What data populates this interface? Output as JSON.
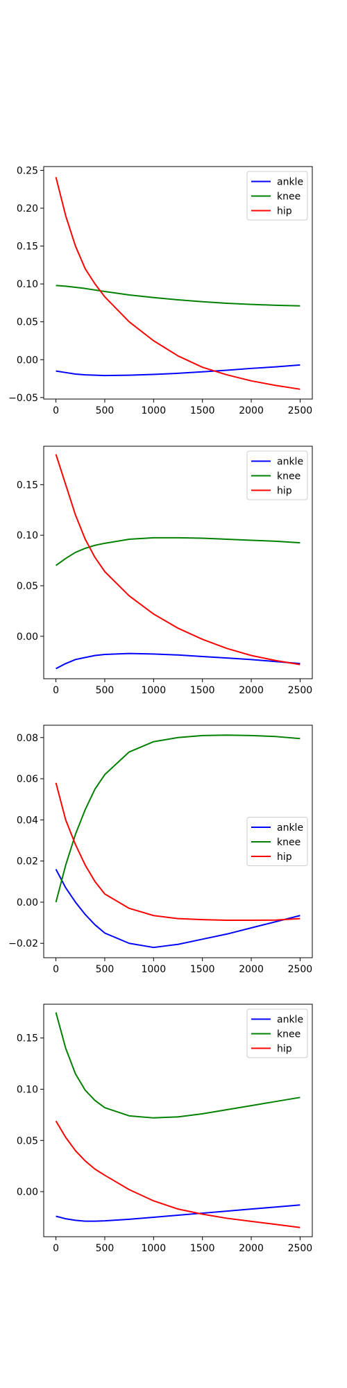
{
  "chart_data": [
    {
      "type": "line",
      "xlim": [
        -125,
        2625
      ],
      "ylim": [
        -0.052,
        0.255
      ],
      "xticks": [
        0,
        500,
        1000,
        1500,
        2000,
        2500
      ],
      "xtick_labels": [
        "0",
        "500",
        "1000",
        "1500",
        "2000",
        "2500"
      ],
      "yticks": [
        -0.05,
        0.0,
        0.05,
        0.1,
        0.15,
        0.2,
        0.25
      ],
      "ytick_labels": [
        "−0.05",
        "0.00",
        "0.05",
        "0.10",
        "0.15",
        "0.20",
        "0.25"
      ],
      "grid": false,
      "legend_position": "upper right",
      "series": [
        {
          "name": "ankle",
          "color": "#0000ff",
          "x": [
            0,
            100,
            200,
            300,
            400,
            500,
            750,
            1000,
            1250,
            1500,
            1750,
            2000,
            2250,
            2500
          ],
          "y": [
            -0.015,
            -0.017,
            -0.019,
            -0.02,
            -0.0205,
            -0.021,
            -0.0205,
            -0.0195,
            -0.018,
            -0.016,
            -0.014,
            -0.0115,
            -0.0095,
            -0.007
          ]
        },
        {
          "name": "knee",
          "color": "#008000",
          "x": [
            0,
            100,
            200,
            300,
            400,
            500,
            750,
            1000,
            1250,
            1500,
            1750,
            2000,
            2250,
            2500
          ],
          "y": [
            0.098,
            0.097,
            0.0955,
            0.094,
            0.092,
            0.09,
            0.0855,
            0.082,
            0.079,
            0.0765,
            0.0745,
            0.073,
            0.0718,
            0.071
          ]
        },
        {
          "name": "hip",
          "color": "#ff0000",
          "x": [
            0,
            100,
            200,
            300,
            400,
            500,
            750,
            1000,
            1250,
            1500,
            1750,
            2000,
            2250,
            2500
          ],
          "y": [
            0.241,
            0.19,
            0.15,
            0.12,
            0.1,
            0.083,
            0.05,
            0.025,
            0.005,
            -0.01,
            -0.02,
            -0.028,
            -0.034,
            -0.039
          ]
        }
      ]
    },
    {
      "type": "line",
      "xlim": [
        -125,
        2625
      ],
      "ylim": [
        -0.042,
        0.188
      ],
      "xticks": [
        0,
        500,
        1000,
        1500,
        2000,
        2500
      ],
      "xtick_labels": [
        "0",
        "500",
        "1000",
        "1500",
        "2000",
        "2500"
      ],
      "yticks": [
        0.0,
        0.05,
        0.1,
        0.15
      ],
      "ytick_labels": [
        "0.00",
        "0.05",
        "0.10",
        "0.15"
      ],
      "grid": false,
      "legend_position": "upper right",
      "series": [
        {
          "name": "ankle",
          "color": "#0000ff",
          "x": [
            0,
            100,
            200,
            300,
            400,
            500,
            750,
            1000,
            1250,
            1500,
            1750,
            2000,
            2250,
            2500
          ],
          "y": [
            -0.032,
            -0.027,
            -0.023,
            -0.021,
            -0.019,
            -0.018,
            -0.017,
            -0.0175,
            -0.0185,
            -0.02,
            -0.0215,
            -0.023,
            -0.025,
            -0.027
          ]
        },
        {
          "name": "knee",
          "color": "#008000",
          "x": [
            0,
            100,
            200,
            300,
            400,
            500,
            750,
            1000,
            1250,
            1500,
            1750,
            2000,
            2250,
            2500
          ],
          "y": [
            0.07,
            0.077,
            0.083,
            0.087,
            0.09,
            0.092,
            0.096,
            0.0975,
            0.0975,
            0.097,
            0.096,
            0.095,
            0.094,
            0.0925
          ]
        },
        {
          "name": "hip",
          "color": "#ff0000",
          "x": [
            0,
            100,
            200,
            300,
            400,
            500,
            750,
            1000,
            1250,
            1500,
            1750,
            2000,
            2250,
            2500
          ],
          "y": [
            0.18,
            0.15,
            0.12,
            0.096,
            0.078,
            0.064,
            0.04,
            0.022,
            0.008,
            -0.003,
            -0.012,
            -0.019,
            -0.024,
            -0.028
          ]
        }
      ]
    },
    {
      "type": "line",
      "xlim": [
        -125,
        2625
      ],
      "ylim": [
        -0.027,
        0.086
      ],
      "xticks": [
        0,
        500,
        1000,
        1500,
        2000,
        2500
      ],
      "xtick_labels": [
        "0",
        "500",
        "1000",
        "1500",
        "2000",
        "2500"
      ],
      "yticks": [
        -0.02,
        0.0,
        0.02,
        0.04,
        0.06,
        0.08
      ],
      "ytick_labels": [
        "−0.02",
        "0.00",
        "0.02",
        "0.04",
        "0.06",
        "0.08"
      ],
      "grid": false,
      "legend_position": "center right",
      "series": [
        {
          "name": "ankle",
          "color": "#0000ff",
          "x": [
            0,
            100,
            200,
            300,
            400,
            500,
            750,
            1000,
            1250,
            1500,
            1750,
            2000,
            2250,
            2500
          ],
          "y": [
            0.016,
            0.007,
            0.0,
            -0.006,
            -0.011,
            -0.015,
            -0.02,
            -0.022,
            -0.0205,
            -0.018,
            -0.0155,
            -0.0125,
            -0.0095,
            -0.0065
          ]
        },
        {
          "name": "knee",
          "color": "#008000",
          "x": [
            0,
            100,
            200,
            300,
            400,
            500,
            750,
            1000,
            1250,
            1500,
            1750,
            2000,
            2250,
            2500
          ],
          "y": [
            0.0,
            0.018,
            0.033,
            0.045,
            0.055,
            0.062,
            0.073,
            0.078,
            0.08,
            0.081,
            0.0812,
            0.081,
            0.0805,
            0.0795
          ]
        },
        {
          "name": "hip",
          "color": "#ff0000",
          "x": [
            0,
            100,
            200,
            300,
            400,
            500,
            750,
            1000,
            1250,
            1500,
            1750,
            2000,
            2250,
            2500
          ],
          "y": [
            0.058,
            0.04,
            0.028,
            0.018,
            0.01,
            0.004,
            -0.003,
            -0.0065,
            -0.008,
            -0.0085,
            -0.0088,
            -0.0088,
            -0.0087,
            -0.008
          ]
        }
      ]
    },
    {
      "type": "line",
      "xlim": [
        -125,
        2625
      ],
      "ylim": [
        -0.044,
        0.183
      ],
      "xticks": [
        0,
        500,
        1000,
        1500,
        2000,
        2500
      ],
      "xtick_labels": [
        "0",
        "500",
        "1000",
        "1500",
        "2000",
        "2500"
      ],
      "yticks": [
        0.0,
        0.05,
        0.1,
        0.15
      ],
      "ytick_labels": [
        "0.00",
        "0.05",
        "0.10",
        "0.15"
      ],
      "grid": false,
      "legend_position": "upper right",
      "series": [
        {
          "name": "ankle",
          "color": "#0000ff",
          "x": [
            0,
            100,
            200,
            300,
            400,
            500,
            750,
            1000,
            1250,
            1500,
            1750,
            2000,
            2250,
            2500
          ],
          "y": [
            -0.024,
            -0.0265,
            -0.028,
            -0.0288,
            -0.0288,
            -0.0285,
            -0.027,
            -0.025,
            -0.023,
            -0.021,
            -0.019,
            -0.017,
            -0.015,
            -0.013
          ]
        },
        {
          "name": "knee",
          "color": "#008000",
          "x": [
            0,
            100,
            200,
            300,
            400,
            500,
            750,
            1000,
            1250,
            1500,
            1750,
            2000,
            2250,
            2500
          ],
          "y": [
            0.175,
            0.14,
            0.115,
            0.099,
            0.089,
            0.082,
            0.074,
            0.072,
            0.073,
            0.076,
            0.08,
            0.084,
            0.088,
            0.092
          ]
        },
        {
          "name": "hip",
          "color": "#ff0000",
          "x": [
            0,
            100,
            200,
            300,
            400,
            500,
            750,
            1000,
            1250,
            1500,
            1750,
            2000,
            2250,
            2500
          ],
          "y": [
            0.069,
            0.053,
            0.04,
            0.03,
            0.022,
            0.016,
            0.002,
            -0.009,
            -0.017,
            -0.022,
            -0.026,
            -0.029,
            -0.032,
            -0.035
          ]
        }
      ]
    }
  ]
}
